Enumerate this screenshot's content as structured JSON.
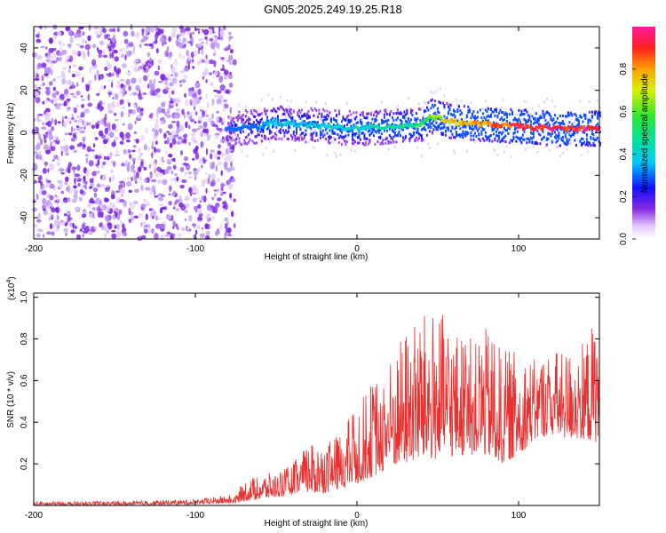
{
  "title": "GN05.2025.249.19.25.R18",
  "chart_data": [
    {
      "type": "heatmap",
      "xlabel": "Height of straight line (km)",
      "ylabel": "Frequency (Hz)",
      "xlim": [
        -200,
        150
      ],
      "ylim": [
        -50,
        50
      ],
      "x_ticks": [
        -200,
        -100,
        0,
        100
      ],
      "y_ticks": [
        -40,
        -20,
        0,
        20,
        40
      ],
      "colorbar": {
        "label": "Normalized spectral amplitude",
        "range": [
          0,
          1
        ],
        "ticks": [
          0.0,
          0.2,
          0.4,
          0.6,
          0.8
        ]
      },
      "regions": [
        {
          "x_range": [
            -200,
            -80
          ],
          "frequency_range": [
            -50,
            50
          ],
          "amplitude": 0.05
        },
        {
          "x_range": [
            -80,
            150
          ],
          "frequency_range": [
            -8,
            8
          ],
          "amplitude": 0.3
        }
      ],
      "ridge": {
        "x": [
          -80,
          -60,
          -50,
          -40,
          -20,
          0,
          20,
          40,
          45,
          60,
          80,
          100,
          120,
          150
        ],
        "frequency": [
          2,
          3,
          5,
          4,
          3,
          2,
          3,
          4,
          8,
          5,
          4,
          3,
          2,
          2
        ],
        "peak_amplitude": [
          0.2,
          0.3,
          0.4,
          0.35,
          0.4,
          0.4,
          0.45,
          0.5,
          0.6,
          0.75,
          0.8,
          0.9,
          0.95,
          0.9
        ]
      }
    },
    {
      "type": "line",
      "xlabel": "Height of straight line (km)",
      "ylabel": "SNR (10 * v/v)",
      "y_scale_label": "(x10",
      "y_scale_exp": "4",
      "y_scale_close": ")",
      "xlim": [
        -200,
        150
      ],
      "ylim": [
        0,
        1.02
      ],
      "x_ticks": [
        -200,
        -100,
        0,
        100
      ],
      "y_ticks": [
        0.2,
        0.4,
        0.6,
        0.8,
        1.0
      ],
      "series": [
        {
          "color": "#e8302f",
          "envelope_x": [
            -200,
            -150,
            -100,
            -80,
            -75,
            -70,
            -60,
            -50,
            -40,
            -30,
            -20,
            -10,
            0,
            10,
            20,
            30,
            40,
            50,
            60,
            70,
            80,
            90,
            100,
            110,
            120,
            130,
            140,
            150
          ],
          "envelope_low": [
            0.0,
            0.0,
            0.005,
            0.01,
            0.01,
            0.02,
            0.03,
            0.04,
            0.05,
            0.06,
            0.06,
            0.08,
            0.1,
            0.14,
            0.18,
            0.2,
            0.22,
            0.22,
            0.24,
            0.24,
            0.24,
            0.2,
            0.24,
            0.32,
            0.34,
            0.32,
            0.32,
            0.3
          ],
          "envelope_high": [
            0.02,
            0.02,
            0.03,
            0.05,
            0.05,
            0.12,
            0.15,
            0.16,
            0.2,
            0.3,
            0.3,
            0.35,
            0.5,
            0.6,
            0.7,
            0.85,
            0.92,
            0.95,
            0.85,
            0.8,
            0.85,
            0.75,
            0.75,
            0.7,
            0.75,
            0.75,
            0.78,
            0.95
          ]
        }
      ]
    }
  ]
}
